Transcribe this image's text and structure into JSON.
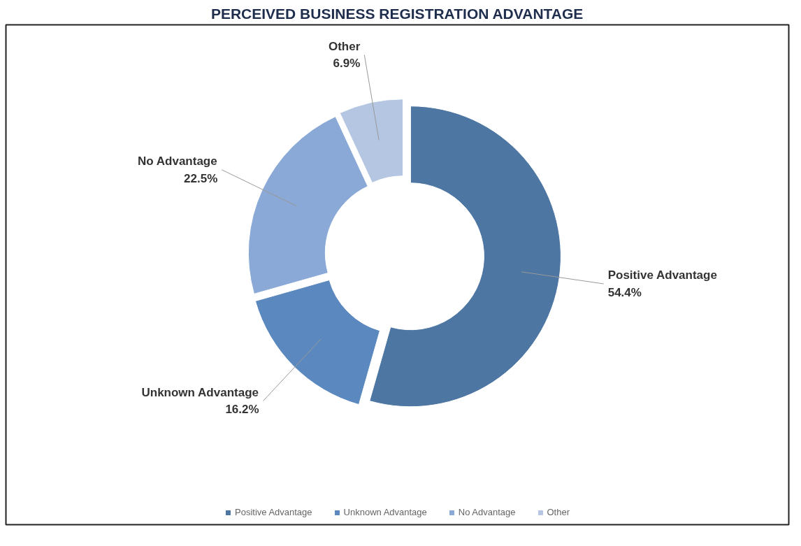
{
  "chart_data": {
    "type": "donut",
    "title": "PERCEIVED BUSINESS REGISTRATION ADVANTAGE",
    "categories": [
      "Positive Advantage",
      "Unknown Advantage",
      "No Advantage",
      "Other"
    ],
    "values": [
      54.4,
      16.2,
      22.5,
      6.9
    ],
    "colors": [
      "#4e76a3",
      "#5b88bf",
      "#8aa9d6",
      "#b4c6e2"
    ],
    "value_labels": [
      "54.4%",
      "16.2%",
      "22.5%",
      "6.9%"
    ],
    "legend": "bottom"
  }
}
